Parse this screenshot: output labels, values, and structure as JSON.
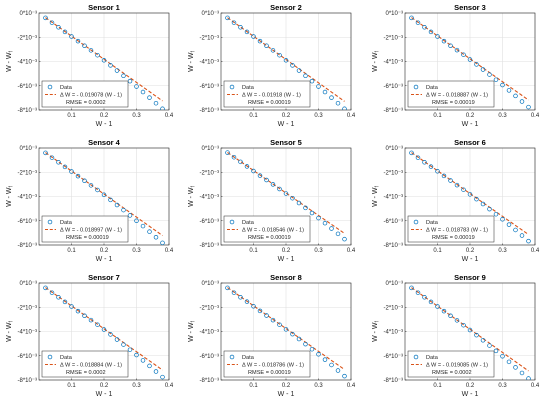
{
  "figure": {
    "rows": 3,
    "cols": 3
  },
  "chart_data": [
    {
      "type": "scatter",
      "title": "Sensor 1",
      "xlabel": "W - 1",
      "ylabel": "W - W_f",
      "xlim": [
        0,
        0.4
      ],
      "ylim": [
        -0.008,
        0
      ],
      "grid": true,
      "legend_position": "bottom-left",
      "xticks": [
        0.1,
        0.2,
        0.3,
        0.4
      ],
      "xtick_labels": [
        "0.1",
        "0.2",
        "0.3",
        "0.4"
      ],
      "yticks": [
        0,
        -0.002,
        -0.004,
        -0.006,
        -0.008
      ],
      "ytick_labels": [
        "0*10⁻³",
        "-2*10⁻³",
        "-4*10⁻³",
        "-6*10⁻³",
        "-8*10⁻³"
      ],
      "series": [
        {
          "name": "Data",
          "kind": "markers",
          "color": "#0072BD",
          "x": [
            0.02,
            0.04,
            0.06,
            0.08,
            0.1,
            0.12,
            0.14,
            0.16,
            0.18,
            0.2,
            0.22,
            0.24,
            0.26,
            0.28,
            0.3,
            0.32,
            0.34,
            0.36,
            0.38
          ],
          "y": [
            -0.0004,
            -0.0008,
            -0.00118,
            -0.00156,
            -0.00194,
            -0.00232,
            -0.0027,
            -0.00308,
            -0.00348,
            -0.0039,
            -0.00432,
            -0.00474,
            -0.00518,
            -0.00562,
            -0.00606,
            -0.00652,
            -0.00698,
            -0.00744,
            -0.0079
          ]
        },
        {
          "name": "Δ W = - 0.019078 (W - 1)",
          "kind": "fit",
          "color": "#D95319",
          "slope": -0.019078
        }
      ],
      "annotation": "RMSE = 0.0002"
    },
    {
      "type": "scatter",
      "title": "Sensor 2",
      "xlabel": "W - 1",
      "ylabel": "W - W_f",
      "xlim": [
        0,
        0.4
      ],
      "ylim": [
        -0.008,
        0
      ],
      "grid": true,
      "legend_position": "bottom-left",
      "xticks": [
        0.1,
        0.2,
        0.3,
        0.4
      ],
      "xtick_labels": [
        "0.1",
        "0.2",
        "0.3",
        "0.4"
      ],
      "yticks": [
        0,
        -0.002,
        -0.004,
        -0.006,
        -0.008
      ],
      "ytick_labels": [
        "0*10⁻³",
        "-2*10⁻³",
        "-4*10⁻³",
        "-6*10⁻³",
        "-8*10⁻³"
      ],
      "series": [
        {
          "name": "Data",
          "kind": "markers",
          "color": "#0072BD",
          "x": [
            0.02,
            0.04,
            0.06,
            0.08,
            0.1,
            0.12,
            0.14,
            0.16,
            0.18,
            0.2,
            0.22,
            0.24,
            0.26,
            0.28,
            0.3,
            0.32,
            0.34,
            0.36,
            0.38
          ],
          "y": [
            -0.0004,
            -0.0008,
            -0.00118,
            -0.00156,
            -0.00194,
            -0.00232,
            -0.0027,
            -0.00308,
            -0.00348,
            -0.0039,
            -0.00432,
            -0.00474,
            -0.00518,
            -0.00562,
            -0.00606,
            -0.00652,
            -0.00698,
            -0.00744,
            -0.0079
          ]
        },
        {
          "name": "Δ W = - 0.01918 (W - 1)",
          "kind": "fit",
          "color": "#D95319",
          "slope": -0.01918
        }
      ],
      "annotation": "RMSE = 0.00019"
    },
    {
      "type": "scatter",
      "title": "Sensor 3",
      "xlabel": "W - 1",
      "ylabel": "W - W_f",
      "xlim": [
        0,
        0.4
      ],
      "ylim": [
        -0.008,
        0
      ],
      "grid": true,
      "legend_position": "bottom-left",
      "xticks": [
        0.1,
        0.2,
        0.3,
        0.4
      ],
      "xtick_labels": [
        "0.1",
        "0.2",
        "0.3",
        "0.4"
      ],
      "yticks": [
        0,
        -0.002,
        -0.004,
        -0.006,
        -0.008
      ],
      "ytick_labels": [
        "0*10⁻³",
        "-2*10⁻³",
        "-4*10⁻³",
        "-6*10⁻³",
        "-8*10⁻³"
      ],
      "series": [
        {
          "name": "Data",
          "kind": "markers",
          "color": "#0072BD",
          "x": [
            0.02,
            0.04,
            0.06,
            0.08,
            0.1,
            0.12,
            0.14,
            0.16,
            0.18,
            0.2,
            0.22,
            0.24,
            0.26,
            0.28,
            0.3,
            0.32,
            0.34,
            0.36,
            0.38
          ],
          "y": [
            -0.0004,
            -0.0008,
            -0.00118,
            -0.00156,
            -0.00194,
            -0.00232,
            -0.0027,
            -0.00306,
            -0.00344,
            -0.00384,
            -0.00424,
            -0.00466,
            -0.00508,
            -0.0055,
            -0.00594,
            -0.00638,
            -0.00684,
            -0.0073,
            -0.00776
          ]
        },
        {
          "name": "Δ W = - 0.018887 (W - 1)",
          "kind": "fit",
          "color": "#D95319",
          "slope": -0.018887
        }
      ],
      "annotation": "RMSE = 0.00019"
    },
    {
      "type": "scatter",
      "title": "Sensor 4",
      "xlabel": "W - 1",
      "ylabel": "W - W_f",
      "xlim": [
        0,
        0.4
      ],
      "ylim": [
        -0.008,
        0
      ],
      "grid": true,
      "legend_position": "bottom-left",
      "xticks": [
        0.1,
        0.2,
        0.3,
        0.4
      ],
      "xtick_labels": [
        "0.1",
        "0.2",
        "0.3",
        "0.4"
      ],
      "yticks": [
        0,
        -0.002,
        -0.004,
        -0.006,
        -0.008
      ],
      "ytick_labels": [
        "0*10⁻³",
        "-2*10⁻³",
        "-4*10⁻³",
        "-6*10⁻³",
        "-8*10⁻³"
      ],
      "series": [
        {
          "name": "Data",
          "kind": "markers",
          "color": "#0072BD",
          "x": [
            0.02,
            0.04,
            0.06,
            0.08,
            0.1,
            0.12,
            0.14,
            0.16,
            0.18,
            0.2,
            0.22,
            0.24,
            0.26,
            0.28,
            0.3,
            0.32,
            0.34,
            0.36,
            0.38
          ],
          "y": [
            -0.0004,
            -0.0008,
            -0.00118,
            -0.00156,
            -0.00194,
            -0.00232,
            -0.0027,
            -0.00308,
            -0.00346,
            -0.00386,
            -0.00428,
            -0.0047,
            -0.00512,
            -0.00556,
            -0.006,
            -0.00644,
            -0.0069,
            -0.00736,
            -0.00782
          ]
        },
        {
          "name": "Δ W = - 0.018997 (W - 1)",
          "kind": "fit",
          "color": "#D95319",
          "slope": -0.018997
        }
      ],
      "annotation": "RMSE = 0.00019"
    },
    {
      "type": "scatter",
      "title": "Sensor 5",
      "xlabel": "W - 1",
      "ylabel": "W - W_f",
      "xlim": [
        0,
        0.4
      ],
      "ylim": [
        -0.008,
        0
      ],
      "grid": true,
      "legend_position": "bottom-left",
      "xticks": [
        0.1,
        0.2,
        0.3,
        0.4
      ],
      "xtick_labels": [
        "0.1",
        "0.2",
        "0.3",
        "0.4"
      ],
      "yticks": [
        0,
        -0.002,
        -0.004,
        -0.006,
        -0.008
      ],
      "ytick_labels": [
        "0*10⁻³",
        "-2*10⁻³",
        "-4*10⁻³",
        "-6*10⁻³",
        "-8*10⁻³"
      ],
      "series": [
        {
          "name": "Data",
          "kind": "markers",
          "color": "#0072BD",
          "x": [
            0.02,
            0.04,
            0.06,
            0.08,
            0.1,
            0.12,
            0.14,
            0.16,
            0.18,
            0.2,
            0.22,
            0.24,
            0.26,
            0.28,
            0.3,
            0.32,
            0.34,
            0.36,
            0.38
          ],
          "y": [
            -0.00038,
            -0.00076,
            -0.00114,
            -0.00152,
            -0.0019,
            -0.00228,
            -0.00264,
            -0.003,
            -0.00338,
            -0.00376,
            -0.00414,
            -0.00454,
            -0.00494,
            -0.00536,
            -0.00578,
            -0.0062,
            -0.00664,
            -0.00708,
            -0.00752
          ]
        },
        {
          "name": "Δ W = - 0.018546 (W - 1)",
          "kind": "fit",
          "color": "#D95319",
          "slope": -0.018546
        }
      ],
      "annotation": "RMSE = 0.00019"
    },
    {
      "type": "scatter",
      "title": "Sensor 6",
      "xlabel": "W - 1",
      "ylabel": "W - W_f",
      "xlim": [
        0,
        0.4
      ],
      "ylim": [
        -0.008,
        0
      ],
      "grid": true,
      "legend_position": "bottom-left",
      "xticks": [
        0.1,
        0.2,
        0.3,
        0.4
      ],
      "xtick_labels": [
        "0.1",
        "0.2",
        "0.3",
        "0.4"
      ],
      "yticks": [
        0,
        -0.002,
        -0.004,
        -0.006,
        -0.008
      ],
      "ytick_labels": [
        "0*10⁻³",
        "-2*10⁻³",
        "-4*10⁻³",
        "-6*10⁻³",
        "-8*10⁻³"
      ],
      "series": [
        {
          "name": "Data",
          "kind": "markers",
          "color": "#0072BD",
          "x": [
            0.02,
            0.04,
            0.06,
            0.08,
            0.1,
            0.12,
            0.14,
            0.16,
            0.18,
            0.2,
            0.22,
            0.24,
            0.26,
            0.28,
            0.3,
            0.32,
            0.34,
            0.36,
            0.38
          ],
          "y": [
            -0.0004,
            -0.0008,
            -0.00118,
            -0.00154,
            -0.00192,
            -0.0023,
            -0.00268,
            -0.00306,
            -0.00344,
            -0.00382,
            -0.00422,
            -0.00462,
            -0.00504,
            -0.00546,
            -0.00588,
            -0.00632,
            -0.00676,
            -0.00722,
            -0.00768
          ]
        },
        {
          "name": "Δ W = - 0.018783 (W - 1)",
          "kind": "fit",
          "color": "#D95319",
          "slope": -0.018783
        }
      ],
      "annotation": "RMSE = 0.00019"
    },
    {
      "type": "scatter",
      "title": "Sensor 7",
      "xlabel": "W - 1",
      "ylabel": "W - W_f",
      "xlim": [
        0,
        0.4
      ],
      "ylim": [
        -0.008,
        0
      ],
      "grid": true,
      "legend_position": "bottom-left",
      "xticks": [
        0.1,
        0.2,
        0.3,
        0.4
      ],
      "xtick_labels": [
        "0.1",
        "0.2",
        "0.3",
        "0.4"
      ],
      "yticks": [
        0,
        -0.002,
        -0.004,
        -0.006,
        -0.008
      ],
      "ytick_labels": [
        "0*10⁻³",
        "-2*10⁻³",
        "-4*10⁻³",
        "-6*10⁻³",
        "-8*10⁻³"
      ],
      "series": [
        {
          "name": "Data",
          "kind": "markers",
          "color": "#0072BD",
          "x": [
            0.02,
            0.04,
            0.06,
            0.08,
            0.1,
            0.12,
            0.14,
            0.16,
            0.18,
            0.2,
            0.22,
            0.24,
            0.26,
            0.28,
            0.3,
            0.32,
            0.34,
            0.36,
            0.38
          ],
          "y": [
            -0.0004,
            -0.0008,
            -0.00118,
            -0.00156,
            -0.00194,
            -0.00232,
            -0.0027,
            -0.00306,
            -0.00344,
            -0.00384,
            -0.00424,
            -0.00466,
            -0.00508,
            -0.0055,
            -0.00594,
            -0.00638,
            -0.00684,
            -0.0073,
            -0.00776
          ]
        },
        {
          "name": "Δ W = - 0.018884 (W - 1)",
          "kind": "fit",
          "color": "#D95319",
          "slope": -0.018884
        }
      ],
      "annotation": "RMSE = 0.0002"
    },
    {
      "type": "scatter",
      "title": "Sensor 8",
      "xlabel": "W - 1",
      "ylabel": "W - W_f",
      "xlim": [
        0,
        0.4
      ],
      "ylim": [
        -0.008,
        0
      ],
      "grid": true,
      "legend_position": "bottom-left",
      "xticks": [
        0.1,
        0.2,
        0.3,
        0.4
      ],
      "xtick_labels": [
        "0.1",
        "0.2",
        "0.3",
        "0.4"
      ],
      "yticks": [
        0,
        -0.002,
        -0.004,
        -0.006,
        -0.008
      ],
      "ytick_labels": [
        "0*10⁻³",
        "-2*10⁻³",
        "-4*10⁻³",
        "-6*10⁻³",
        "-8*10⁻³"
      ],
      "series": [
        {
          "name": "Data",
          "kind": "markers",
          "color": "#0072BD",
          "x": [
            0.02,
            0.04,
            0.06,
            0.08,
            0.1,
            0.12,
            0.14,
            0.16,
            0.18,
            0.2,
            0.22,
            0.24,
            0.26,
            0.28,
            0.3,
            0.32,
            0.34,
            0.36,
            0.38
          ],
          "y": [
            -0.0004,
            -0.0008,
            -0.00118,
            -0.00154,
            -0.00192,
            -0.0023,
            -0.00268,
            -0.00306,
            -0.00344,
            -0.00382,
            -0.00422,
            -0.00462,
            -0.00504,
            -0.00546,
            -0.00588,
            -0.00632,
            -0.00676,
            -0.00722,
            -0.00768
          ]
        },
        {
          "name": "Δ W = - 0.018786 (W - 1)",
          "kind": "fit",
          "color": "#D95319",
          "slope": -0.018786
        }
      ],
      "annotation": "RMSE = 0.00019"
    },
    {
      "type": "scatter",
      "title": "Sensor 9",
      "xlabel": "W - 1",
      "ylabel": "W - W_f",
      "xlim": [
        0,
        0.4
      ],
      "ylim": [
        -0.008,
        0
      ],
      "grid": true,
      "legend_position": "bottom-left",
      "xticks": [
        0.1,
        0.2,
        0.3,
        0.4
      ],
      "xtick_labels": [
        "0.1",
        "0.2",
        "0.3",
        "0.4"
      ],
      "yticks": [
        0,
        -0.002,
        -0.004,
        -0.006,
        -0.008
      ],
      "ytick_labels": [
        "0*10⁻³",
        "-2*10⁻³",
        "-4*10⁻³",
        "-6*10⁻³",
        "-8*10⁻³"
      ],
      "series": [
        {
          "name": "Data",
          "kind": "markers",
          "color": "#0072BD",
          "x": [
            0.02,
            0.04,
            0.06,
            0.08,
            0.1,
            0.12,
            0.14,
            0.16,
            0.18,
            0.2,
            0.22,
            0.24,
            0.26,
            0.28,
            0.3,
            0.32,
            0.34,
            0.36,
            0.38
          ],
          "y": [
            -0.0004,
            -0.0008,
            -0.00118,
            -0.00156,
            -0.00194,
            -0.00232,
            -0.0027,
            -0.00308,
            -0.00348,
            -0.00388,
            -0.0043,
            -0.00472,
            -0.00516,
            -0.0056,
            -0.00604,
            -0.0065,
            -0.00696,
            -0.00742,
            -0.00788
          ]
        },
        {
          "name": "Δ W = - 0.019085 (W - 1)",
          "kind": "fit",
          "color": "#D95319",
          "slope": -0.019085
        }
      ],
      "annotation": "RMSE = 0.0002"
    }
  ]
}
